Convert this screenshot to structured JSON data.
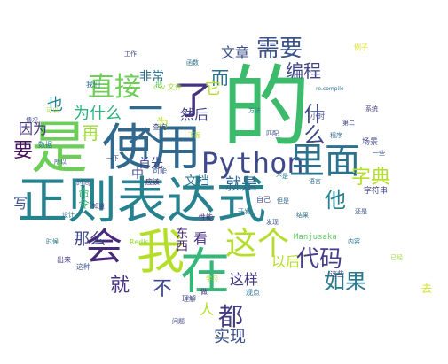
{
  "words": [
    {
      "text": "的",
      "color": "#3dbb6c"
    },
    {
      "text": "是",
      "color": "#6dcd59"
    },
    {
      "text": "使用",
      "color": "#31688e"
    },
    {
      "text": "正则表达式",
      "color": "#26828e"
    },
    {
      "text": "Python",
      "color": "#3e4989"
    },
    {
      "text": "我",
      "color": "#b5de2b"
    },
    {
      "text": "在",
      "color": "#35b779"
    },
    {
      "text": "会",
      "color": "#482878"
    },
    {
      "text": "一个",
      "color": "#31688e"
    },
    {
      "text": "了",
      "color": "#46337e"
    },
    {
      "text": "里面",
      "color": "#2c728e"
    },
    {
      "text": "这个",
      "color": "#b5de2b"
    },
    {
      "text": "代码",
      "color": "#433e85"
    },
    {
      "text": "需要",
      "color": "#3b528b"
    },
    {
      "text": "直接",
      "color": "#6ece58"
    },
    {
      "text": "如果",
      "color": "#2a788e"
    },
    {
      "text": "都",
      "color": "#443a83"
    },
    {
      "text": "字典",
      "color": "#b5de2b"
    },
    {
      "text": "什么",
      "color": "#3e4989"
    },
    {
      "text": "他",
      "color": "#26828e"
    },
    {
      "text": "就",
      "color": "#46327e"
    },
    {
      "text": "不",
      "color": "#3e4989"
    },
    {
      "text": "而",
      "color": "#2c728e"
    },
    {
      "text": "编程",
      "color": "#404688"
    },
    {
      "text": "文章",
      "color": "#3b528b"
    },
    {
      "text": "为什么",
      "color": "#2db27d"
    },
    {
      "text": "因为",
      "color": "#443983"
    },
    {
      "text": "再",
      "color": "#9fda3a"
    },
    {
      "text": "首先",
      "color": "#3f4788"
    },
    {
      "text": "然后",
      "color": "#414487"
    },
    {
      "text": "非常",
      "color": "#2c728e"
    },
    {
      "text": "那么",
      "color": "#3f4889"
    },
    {
      "text": "就是",
      "color": "#31688e"
    },
    {
      "text": "这样",
      "color": "#453781"
    },
    {
      "text": "实现",
      "color": "#3b528b"
    },
    {
      "text": "以后",
      "color": "#b5de2b"
    },
    {
      "text": "要",
      "color": "#471164"
    },
    {
      "text": "看",
      "color": "#472f7d"
    },
    {
      "text": "写",
      "color": "#3b528b"
    },
    {
      "text": "东西",
      "color": "#482475"
    },
    {
      "text": "文档",
      "color": "#2f6c8e"
    },
    {
      "text": "它",
      "color": "#b5de2b"
    },
    {
      "text": "人",
      "color": "#b5de2b"
    },
    {
      "text": "也",
      "color": "#24868e"
    },
    {
      "text": "中",
      "color": "#3f4788"
    },
    {
      "text": "为",
      "color": "#b8de29"
    },
    {
      "text": "Manjusaka",
      "color": "#5ec962"
    },
    {
      "text": "Redis",
      "color": "#95d840"
    },
    {
      "text": "csv 文件",
      "color": "#9fda3a"
    },
    {
      "text": "re.compile",
      "color": "#2c728e"
    },
    {
      "text": "字符串",
      "color": "#414487"
    },
    {
      "text": "场景",
      "color": "#3f4788"
    },
    {
      "text": "例子",
      "color": "#d8e219"
    },
    {
      "text": "查询",
      "color": "#3e4c8a"
    },
    {
      "text": "自己",
      "color": "#3e4c8a"
    },
    {
      "text": "小时",
      "color": "#414487"
    },
    {
      "text": "时间",
      "color": "#33638d"
    },
    {
      "text": "命令",
      "color": "#3dbc74"
    },
    {
      "text": "性能",
      "color": "#482475"
    },
    {
      "text": "观点",
      "color": "#2d708e"
    },
    {
      "text": "出来",
      "color": "#453781"
    },
    {
      "text": "这些",
      "color": "#414487"
    },
    {
      "text": "数据",
      "color": "#2a788e"
    },
    {
      "text": "我们",
      "color": "#2c728e"
    },
    {
      "text": "情况",
      "color": "#404688"
    },
    {
      "text": "可能",
      "color": "#3e4a89"
    },
    {
      "text": "应该",
      "color": "#481b6d"
    },
    {
      "text": "理解",
      "color": "#3e4989"
    },
    {
      "text": "这种",
      "color": "#3b528b"
    },
    {
      "text": "去",
      "color": "#d2e21b"
    },
    {
      "text": "做",
      "color": "#472c7a"
    },
    {
      "text": "把",
      "color": "#5ec962"
    },
    {
      "text": "可以",
      "color": "#b5de2b"
    },
    {
      "text": "不是",
      "color": "#2a788e"
    },
    {
      "text": "所以",
      "color": "#3b528b"
    },
    {
      "text": "方法",
      "color": "#25848e"
    },
    {
      "text": "函数",
      "color": "#2c728e"
    },
    {
      "text": "还是",
      "color": "#3b528b"
    },
    {
      "text": "已经",
      "color": "#9fda3a"
    },
    {
      "text": "但是",
      "color": "#31688e"
    },
    {
      "text": "一下",
      "color": "#433e85"
    },
    {
      "text": "结果",
      "color": "#2a788e"
    },
    {
      "text": "问题",
      "color": "#404688"
    },
    {
      "text": "程序",
      "color": "#31688e"
    },
    {
      "text": "发现",
      "color": "#3b528b"
    },
    {
      "text": "设计",
      "color": "#2c728e"
    },
    {
      "text": "系统",
      "color": "#443983"
    },
    {
      "text": "学习",
      "color": "#b5de2b"
    },
    {
      "text": "内容",
      "color": "#2a788e"
    },
    {
      "text": "匹配",
      "color": "#3e4989"
    },
    {
      "text": "第二",
      "color": "#414487"
    },
    {
      "text": "开发",
      "color": "#2c728e"
    },
    {
      "text": "工作",
      "color": "#3f4788"
    },
    {
      "text": "一些",
      "color": "#3b528b"
    },
    {
      "text": "语言",
      "color": "#31688e"
    },
    {
      "text": "知道",
      "color": "#433e85"
    },
    {
      "text": "下面",
      "color": "#b5de2b"
    },
    {
      "text": "时候",
      "color": "#2a788e"
    }
  ]
}
